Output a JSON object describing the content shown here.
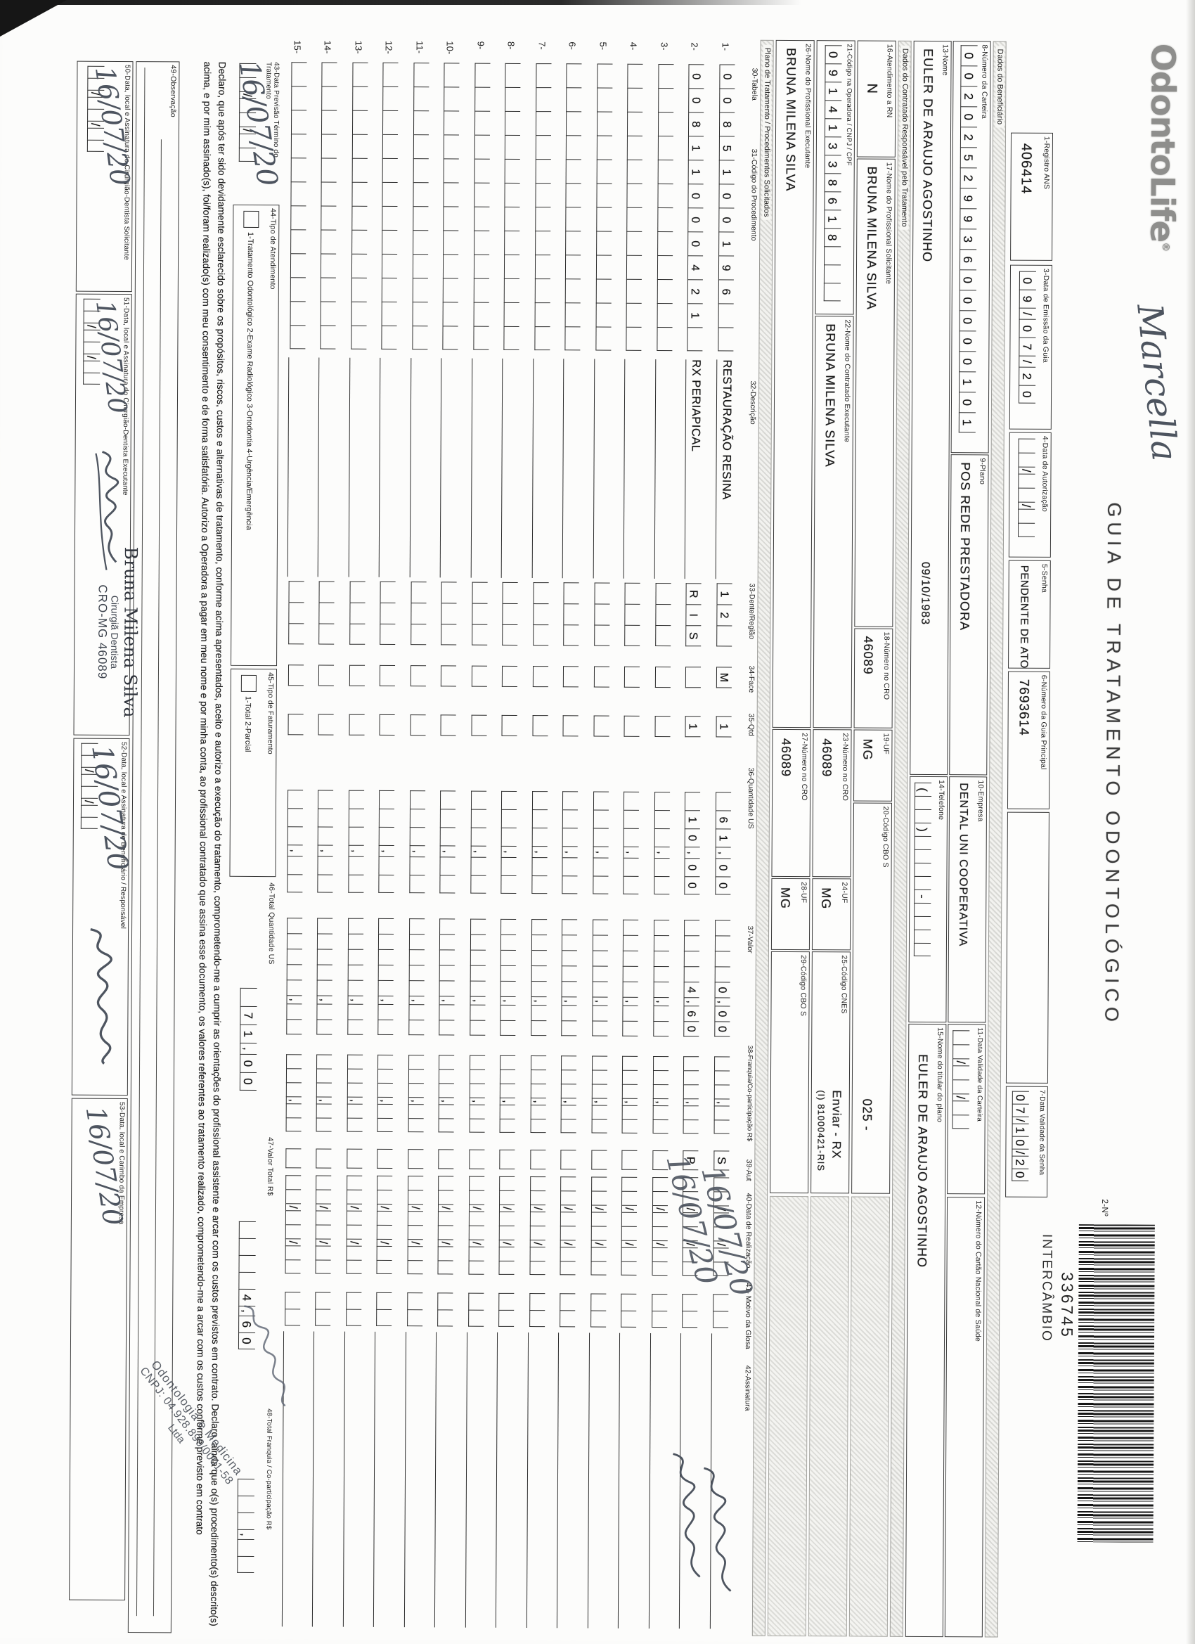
{
  "header": {
    "logo": "OdontoLife",
    "logo_reg": "®",
    "handwriting_name": "Marcella",
    "title": "GUIA DE TRATAMENTO ODONTOLÓGICO",
    "num_label": "2-Nº",
    "barcode_number": "336745",
    "barcode_tag": "INTERCÂMBIO"
  },
  "fields": {
    "f1": {
      "label": "1-Registro ANS",
      "value": "406414"
    },
    "f3": {
      "label": "3-Data de Emissão da Guia",
      "cells": "09/07/20"
    },
    "f4": {
      "label": "4-Data de Autorização",
      "cells": "  /  /  "
    },
    "f5": {
      "label": "5-Senha",
      "value": "PENDENTE DE ATO"
    },
    "f6": {
      "label": "6-Número da Guia Principal",
      "value": "7693614"
    },
    "f7": {
      "label": "7-Data Validade da Senha",
      "cells": "07/10/20"
    },
    "f8": {
      "label": "8-Número da Carteira",
      "cells": "0020252993600000101"
    },
    "f9": {
      "label": "9-Plano",
      "value": "POS REDE PRESTADORA"
    },
    "f10": {
      "label": "10-Empresa",
      "value": "DENTAL UNI  COOPERATIVA"
    },
    "f11": {
      "label": "11-Data Validade da Carteira",
      "cells": "  /  /  "
    },
    "f12": {
      "label": "12-Número do Cartão Nacional de Saúde",
      "value": ""
    },
    "f13": {
      "label": "13-Nome",
      "value": "EULER DE ARAUJO AGOSTINHO",
      "birth_date": "09/10/1983"
    },
    "f14": {
      "label": "14-Telefone",
      "cells": "(  )    -    "
    },
    "f15": {
      "label": "15-Nome do titular do plano",
      "value": "EULER DE ARAUJO AGOSTINHO"
    },
    "f16": {
      "label": "16-Atendimento a RN",
      "value": "N"
    },
    "f17": {
      "label": "17-Nome do Profissional Solicitante",
      "value": "BRUNA MILENA SILVA"
    },
    "f18": {
      "label": "18-Número no CRO",
      "value": "46089"
    },
    "f19": {
      "label": "19-UF",
      "value": "MG"
    },
    "f20": {
      "label": "20-Código CBO S",
      "value": "025 -"
    },
    "f21": {
      "label": "21-Código na Operadora / CNPJ / CPF",
      "cells": "09141338618   "
    },
    "f22": {
      "label": "22-Nome do Contratado Executante",
      "value": "BRUNA MILENA SILVA"
    },
    "f23": {
      "label": "23-Número no CRO",
      "value": "46089"
    },
    "f24": {
      "label": "24-UF",
      "value": "MG"
    },
    "f25": {
      "label": "25-Código CNES",
      "value": "Enviar - RX",
      "value2": "(I) 81000421-RIS"
    },
    "f26": {
      "label": "26-Nome do Profissional Executante",
      "value": "BRUNA MILENA SILVA"
    },
    "f27": {
      "label": "27-Número no CRO",
      "value": "46089"
    },
    "f28": {
      "label": "28-UF",
      "value": "MG"
    },
    "f29": {
      "label": "29-Código CBO S",
      "value": ""
    }
  },
  "sections": {
    "beneficiario": "Dados do Beneficiário",
    "contratado_responsavel": "Dados do Contratado Responsável pelo Tratamento",
    "plano_tratamento": "Plano de Tratamento / Procedimentos Solicitados"
  },
  "table": {
    "headers": {
      "tabela": "30-Tabela",
      "codigo": "31-Código do Procedimento",
      "descricao": "32-Descrição",
      "dente": "33-Dente/Região",
      "face": "34-Face",
      "qtd": "35-Qtd",
      "us": "36-Quantidade US",
      "valor": "37-Valor",
      "franquia": "38-Franquia/Co-participação R$",
      "aut": "39-Aut",
      "data": "40-Data de Realização",
      "glosa": "41- Motivo da Glosa",
      "assinatura": "42-Assinatura"
    },
    "rows": [
      {
        "n": "1-",
        "code": "0085100196  ",
        "desc": "RESTAURAÇÃO RESINA",
        "dente": "12 ",
        "face": "M",
        "qtd": "1",
        "us": " 61,00",
        "valor": "    0,00",
        "franquia": "   ,  ",
        "aut": "S",
        "data": "  /  /  ",
        "glosa": "  ",
        "hand_date": "16/07/20",
        "signed": true
      },
      {
        "n": "2-",
        "code": "00811000421 ",
        "desc": "RX PERIAPICAL",
        "dente": "RIS",
        "face": " ",
        "qtd": "1",
        "us": " 10,00",
        "valor": "    4,60",
        "franquia": "   ,  ",
        "aut": "P",
        "data": "  /  /  ",
        "glosa": "  ",
        "hand_date": "16/07/20",
        "signed": true
      },
      {
        "n": "3-",
        "code": "            ",
        "desc": "",
        "dente": "   ",
        "face": " ",
        "qtd": " ",
        "us": "   ,  ",
        "valor": "     ,  ",
        "franquia": "   ,  ",
        "aut": " ",
        "data": "  /  /  ",
        "glosa": "  "
      },
      {
        "n": "4-",
        "code": "            ",
        "desc": "",
        "dente": "   ",
        "face": " ",
        "qtd": " ",
        "us": "   ,  ",
        "valor": "     ,  ",
        "franquia": "   ,  ",
        "aut": " ",
        "data": "  /  /  ",
        "glosa": "  "
      },
      {
        "n": "5-",
        "code": "            ",
        "desc": "",
        "dente": "   ",
        "face": " ",
        "qtd": " ",
        "us": "   ,  ",
        "valor": "     ,  ",
        "franquia": "   ,  ",
        "aut": " ",
        "data": "  /  /  ",
        "glosa": "  "
      },
      {
        "n": "6-",
        "code": "            ",
        "desc": "",
        "dente": "   ",
        "face": " ",
        "qtd": " ",
        "us": "   ,  ",
        "valor": "     ,  ",
        "franquia": "   ,  ",
        "aut": " ",
        "data": "  /  /  ",
        "glosa": "  "
      },
      {
        "n": "7-",
        "code": "            ",
        "desc": "",
        "dente": "   ",
        "face": " ",
        "qtd": " ",
        "us": "   ,  ",
        "valor": "     ,  ",
        "franquia": "   ,  ",
        "aut": " ",
        "data": "  /  /  ",
        "glosa": "  "
      },
      {
        "n": "8-",
        "code": "            ",
        "desc": "",
        "dente": "   ",
        "face": " ",
        "qtd": " ",
        "us": "   ,  ",
        "valor": "     ,  ",
        "franquia": "   ,  ",
        "aut": " ",
        "data": "  /  /  ",
        "glosa": "  "
      },
      {
        "n": "9-",
        "code": "            ",
        "desc": "",
        "dente": "   ",
        "face": " ",
        "qtd": " ",
        "us": "   ,  ",
        "valor": "     ,  ",
        "franquia": "   ,  ",
        "aut": " ",
        "data": "  /  /  ",
        "glosa": "  "
      },
      {
        "n": "10-",
        "code": "            ",
        "desc": "",
        "dente": "   ",
        "face": " ",
        "qtd": " ",
        "us": "   ,  ",
        "valor": "     ,  ",
        "franquia": "   ,  ",
        "aut": " ",
        "data": "  /  /  ",
        "glosa": "  "
      },
      {
        "n": "11-",
        "code": "            ",
        "desc": "",
        "dente": "   ",
        "face": " ",
        "qtd": " ",
        "us": "   ,  ",
        "valor": "     ,  ",
        "franquia": "   ,  ",
        "aut": " ",
        "data": "  /  /  ",
        "glosa": "  "
      },
      {
        "n": "12-",
        "code": "            ",
        "desc": "",
        "dente": "   ",
        "face": " ",
        "qtd": " ",
        "us": "   ,  ",
        "valor": "     ,  ",
        "franquia": "   ,  ",
        "aut": " ",
        "data": "  /  /  ",
        "glosa": "  "
      },
      {
        "n": "13-",
        "code": "            ",
        "desc": "",
        "dente": "   ",
        "face": " ",
        "qtd": " ",
        "us": "   ,  ",
        "valor": "     ,  ",
        "franquia": "   ,  ",
        "aut": " ",
        "data": "  /  /  ",
        "glosa": "  "
      },
      {
        "n": "14-",
        "code": "            ",
        "desc": "",
        "dente": "   ",
        "face": " ",
        "qtd": " ",
        "us": "   ,  ",
        "valor": "     ,  ",
        "franquia": "   ,  ",
        "aut": " ",
        "data": "  /  /  ",
        "glosa": "  "
      },
      {
        "n": "15-",
        "code": "            ",
        "desc": "",
        "dente": "   ",
        "face": " ",
        "qtd": " ",
        "us": "   ,  ",
        "valor": "     ,  ",
        "franquia": "   ,  ",
        "aut": " ",
        "data": "  /  /  ",
        "glosa": "  "
      }
    ]
  },
  "totals": {
    "f43": {
      "label": "43-Data Previsão Término do Tratamento",
      "cells": "  /  /  ",
      "hand": "16/07/20"
    },
    "f44": {
      "label": "44-Tipo de Atendimento",
      "legend": "1-Tratamento Odontológico  2-Exame Radiológico  3-Ortodontia  4-Urgência/Emergência"
    },
    "f45": {
      "label": "45-Tipo de Faturamento",
      "legend": "1-Total  2-Parcial"
    },
    "f46": {
      "label": "46-Total Quantidade US",
      "cells": " 71,00"
    },
    "f47": {
      "label": "47-Valor Total R$",
      "cells": "    4,60"
    },
    "f48": {
      "label": "48-Total Franquia / Co-participação R$",
      "cells": "   ,  "
    }
  },
  "declaration": "Declaro, que após ter sido devidamente esclarecido sobre os propósitos, riscos, custos e alternativas de tratamento, conforme acima apresentados, aceito e autorizo a execução do tratamento, comprometendo-me a cumprir as orientações do profissional assistente e arcar com os custos previstos em contrato. Declaro, ainda que o(s) procedimento(s) descrito(s) acima, e por mim assinado(s), foi/foram realizado(s) com meu consentimento e de forma satisfatória. Autorizo a Operadora a pagar em meu nome e por minha conta, ao profissional contratado que assina esse documento, os valores referentes ao tratamento realizado, comprometendo-me a arcar com os custos conforme previsto em contrato",
  "footer": {
    "f49": {
      "label": "49-Observação"
    },
    "f50": {
      "label": "50-Data, local e Assinatura do Cirurgião-Dentista Solicitante",
      "cells": "  /  /  ",
      "hand": "16/07/20"
    },
    "f51": {
      "label": "51-Data, local e Assinatura do Cirurgião-Dentista Executante",
      "cells": "  /  /  ",
      "hand": "16/07/20",
      "stamp": [
        "Bruna Milena Silva",
        "Cirurgiã Dentista",
        "CRO-MG 46089"
      ]
    },
    "f52": {
      "label": "52-Data, local e Assinatura do Beneficiário / Responsável",
      "cells": "  /  /  ",
      "hand": "16/07/20"
    },
    "f53": {
      "label": "53-Data, local e Carimbo da Empresa",
      "cells": "  /  /  ",
      "hand": "16/07/20",
      "stamp": [
        "Odontologia e Medicina",
        "CNPJ: 04.928.899/0001-58",
        "Ltda"
      ]
    }
  }
}
